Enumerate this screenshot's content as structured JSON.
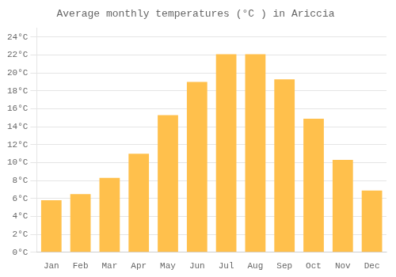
{
  "chart_data": {
    "type": "bar",
    "title": "Average monthly temperatures (°C ) in Ariccia",
    "categories": [
      "Jan",
      "Feb",
      "Mar",
      "Apr",
      "May",
      "Jun",
      "Jul",
      "Aug",
      "Sep",
      "Oct",
      "Nov",
      "Dec"
    ],
    "values": [
      5.8,
      6.5,
      8.3,
      11.0,
      15.3,
      19.0,
      22.1,
      22.1,
      19.3,
      14.9,
      10.3,
      6.9
    ],
    "color": "#FFC04C",
    "ylim": [
      0,
      25
    ],
    "yticks": [
      {
        "value": 0,
        "label": "0°C"
      },
      {
        "value": 2,
        "label": "2°C"
      },
      {
        "value": 4,
        "label": "4°C"
      },
      {
        "value": 6,
        "label": "6°C"
      },
      {
        "value": 8,
        "label": "8°C"
      },
      {
        "value": 10,
        "label": "10°C"
      },
      {
        "value": 12,
        "label": "12°C"
      },
      {
        "value": 14,
        "label": "14°C"
      },
      {
        "value": 16,
        "label": "16°C"
      },
      {
        "value": 18,
        "label": "18°C"
      },
      {
        "value": 20,
        "label": "20°C"
      },
      {
        "value": 22,
        "label": "22°C"
      },
      {
        "value": 24,
        "label": "24°C"
      }
    ],
    "grid": true
  }
}
